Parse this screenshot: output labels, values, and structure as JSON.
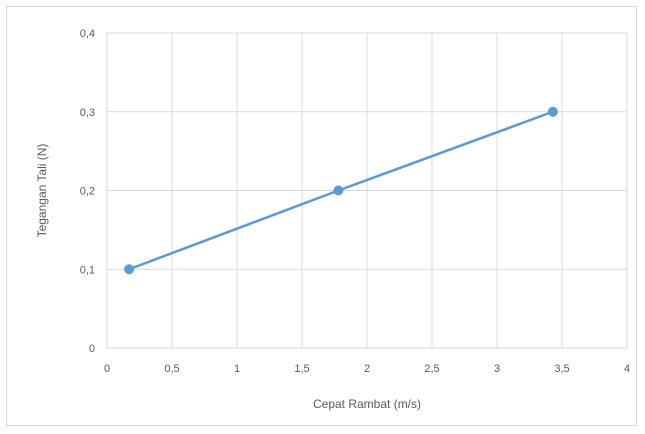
{
  "chart_data": {
    "type": "line",
    "title": "",
    "xlabel": "Cepat Rambat (m/s)",
    "ylabel": "Tegangan Tali (N)",
    "xlim": [
      0,
      4
    ],
    "ylim": [
      0,
      0.4
    ],
    "xticks": [
      0,
      0.5,
      1,
      1.5,
      2,
      2.5,
      3,
      3.5,
      4
    ],
    "yticks": [
      0,
      0.1,
      0.2,
      0.3,
      0.4
    ],
    "xtick_labels": [
      "0",
      "0,5",
      "1",
      "1,5",
      "2",
      "2,5",
      "3",
      "3,5",
      "4"
    ],
    "ytick_labels": [
      "0",
      "0,1",
      "0,2",
      "0,3",
      "0,4"
    ],
    "grid": true,
    "legend": "none",
    "series": [
      {
        "color": "#5b9bd5",
        "x": [
          0.17,
          1.78,
          3.43
        ],
        "y": [
          0.1,
          0.2,
          0.3
        ]
      }
    ]
  }
}
